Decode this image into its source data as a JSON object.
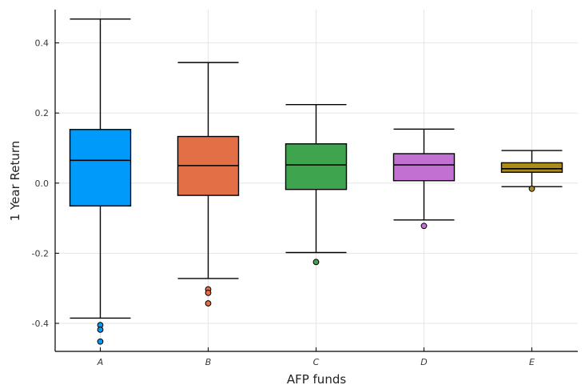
{
  "chart_data": {
    "type": "box",
    "xlabel": "AFP funds",
    "ylabel": "1 Year Return",
    "ylim": [
      -0.48,
      0.495
    ],
    "yticks": [
      {
        "value": 0.4,
        "label": "0.4"
      },
      {
        "value": 0.2,
        "label": "0.2"
      },
      {
        "value": 0.0,
        "label": "0.0"
      },
      {
        "value": -0.2,
        "label": "-0.2"
      },
      {
        "value": -0.4,
        "label": "-0.4"
      }
    ],
    "grid": true,
    "legend": "none",
    "categories": [
      "A",
      "B",
      "C",
      "D",
      "E"
    ],
    "series": [
      {
        "category": "A",
        "color": "#009AFA",
        "whisker_low": -0.385,
        "q1": -0.065,
        "median": 0.065,
        "q3": 0.153,
        "whisker_high": 0.468,
        "outliers": [
          -0.405,
          -0.418,
          -0.452
        ]
      },
      {
        "category": "B",
        "color": "#E26F46",
        "whisker_low": -0.272,
        "q1": -0.035,
        "median": 0.05,
        "q3": 0.133,
        "whisker_high": 0.344,
        "outliers": [
          -0.303,
          -0.313,
          -0.343
        ]
      },
      {
        "category": "C",
        "color": "#3EA44E",
        "whisker_low": -0.198,
        "q1": -0.018,
        "median": 0.052,
        "q3": 0.112,
        "whisker_high": 0.224,
        "outliers": [
          -0.225
        ]
      },
      {
        "category": "D",
        "color": "#C271D2",
        "whisker_low": -0.105,
        "q1": 0.007,
        "median": 0.052,
        "q3": 0.084,
        "whisker_high": 0.154,
        "outliers": [
          -0.122
        ]
      },
      {
        "category": "E",
        "color": "#AC8D18",
        "whisker_low": -0.01,
        "q1": 0.031,
        "median": 0.041,
        "q3": 0.058,
        "whisker_high": 0.093,
        "outliers": [
          -0.016
        ]
      }
    ]
  }
}
